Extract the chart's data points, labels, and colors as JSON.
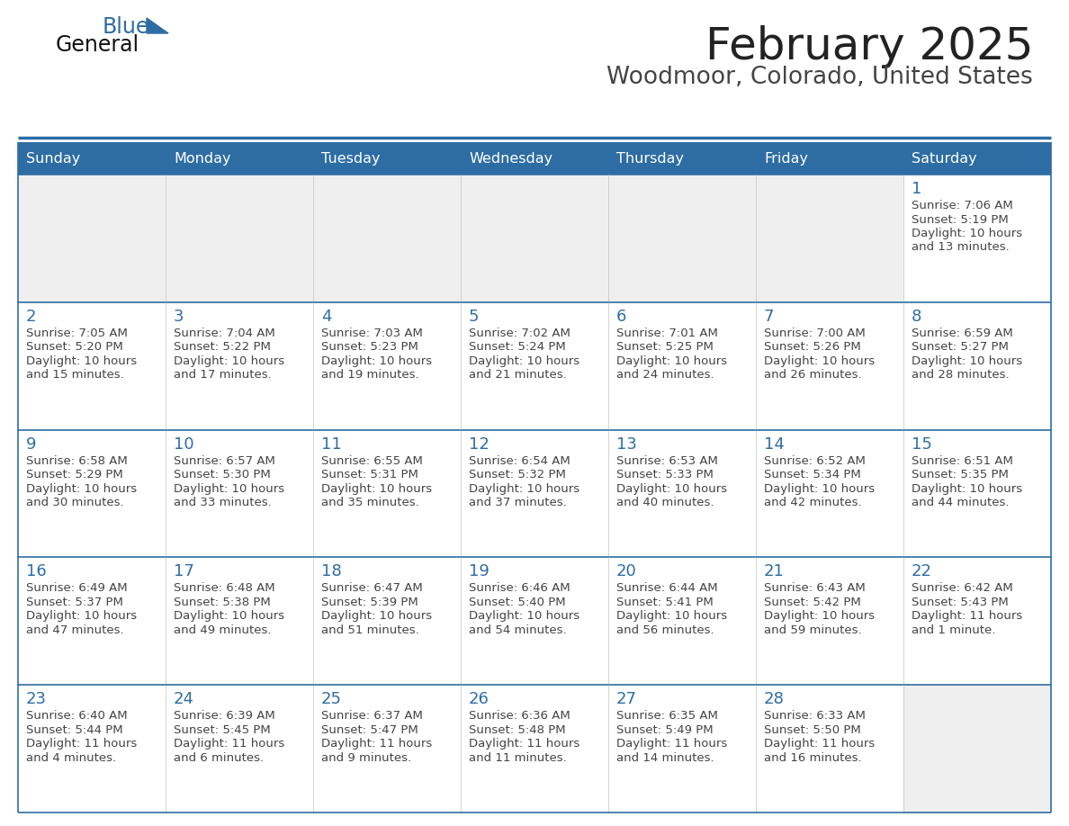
{
  "title": "February 2025",
  "subtitle": "Woodmoor, Colorado, United States",
  "header_color": "#2E6DA4",
  "header_text_color": "#FFFFFF",
  "cell_bg_white": "#FFFFFF",
  "cell_bg_gray": "#EFEFEF",
  "row_separator_color": "#2E6DA4",
  "col_separator_color": "#CCCCCC",
  "day_names": [
    "Sunday",
    "Monday",
    "Tuesday",
    "Wednesday",
    "Thursday",
    "Friday",
    "Saturday"
  ],
  "title_color": "#222222",
  "subtitle_color": "#444444",
  "day_number_color": "#2E6DA4",
  "cell_text_color": "#444444",
  "logo_general_color": "#111111",
  "logo_blue_color": "#2E6DA4",
  "calendar": [
    [
      null,
      null,
      null,
      null,
      null,
      null,
      {
        "day": 1,
        "sunrise": "7:06 AM",
        "sunset": "5:19 PM",
        "daylight_line1": "Daylight: 10 hours",
        "daylight_line2": "and 13 minutes."
      }
    ],
    [
      {
        "day": 2,
        "sunrise": "7:05 AM",
        "sunset": "5:20 PM",
        "daylight_line1": "Daylight: 10 hours",
        "daylight_line2": "and 15 minutes."
      },
      {
        "day": 3,
        "sunrise": "7:04 AM",
        "sunset": "5:22 PM",
        "daylight_line1": "Daylight: 10 hours",
        "daylight_line2": "and 17 minutes."
      },
      {
        "day": 4,
        "sunrise": "7:03 AM",
        "sunset": "5:23 PM",
        "daylight_line1": "Daylight: 10 hours",
        "daylight_line2": "and 19 minutes."
      },
      {
        "day": 5,
        "sunrise": "7:02 AM",
        "sunset": "5:24 PM",
        "daylight_line1": "Daylight: 10 hours",
        "daylight_line2": "and 21 minutes."
      },
      {
        "day": 6,
        "sunrise": "7:01 AM",
        "sunset": "5:25 PM",
        "daylight_line1": "Daylight: 10 hours",
        "daylight_line2": "and 24 minutes."
      },
      {
        "day": 7,
        "sunrise": "7:00 AM",
        "sunset": "5:26 PM",
        "daylight_line1": "Daylight: 10 hours",
        "daylight_line2": "and 26 minutes."
      },
      {
        "day": 8,
        "sunrise": "6:59 AM",
        "sunset": "5:27 PM",
        "daylight_line1": "Daylight: 10 hours",
        "daylight_line2": "and 28 minutes."
      }
    ],
    [
      {
        "day": 9,
        "sunrise": "6:58 AM",
        "sunset": "5:29 PM",
        "daylight_line1": "Daylight: 10 hours",
        "daylight_line2": "and 30 minutes."
      },
      {
        "day": 10,
        "sunrise": "6:57 AM",
        "sunset": "5:30 PM",
        "daylight_line1": "Daylight: 10 hours",
        "daylight_line2": "and 33 minutes."
      },
      {
        "day": 11,
        "sunrise": "6:55 AM",
        "sunset": "5:31 PM",
        "daylight_line1": "Daylight: 10 hours",
        "daylight_line2": "and 35 minutes."
      },
      {
        "day": 12,
        "sunrise": "6:54 AM",
        "sunset": "5:32 PM",
        "daylight_line1": "Daylight: 10 hours",
        "daylight_line2": "and 37 minutes."
      },
      {
        "day": 13,
        "sunrise": "6:53 AM",
        "sunset": "5:33 PM",
        "daylight_line1": "Daylight: 10 hours",
        "daylight_line2": "and 40 minutes."
      },
      {
        "day": 14,
        "sunrise": "6:52 AM",
        "sunset": "5:34 PM",
        "daylight_line1": "Daylight: 10 hours",
        "daylight_line2": "and 42 minutes."
      },
      {
        "day": 15,
        "sunrise": "6:51 AM",
        "sunset": "5:35 PM",
        "daylight_line1": "Daylight: 10 hours",
        "daylight_line2": "and 44 minutes."
      }
    ],
    [
      {
        "day": 16,
        "sunrise": "6:49 AM",
        "sunset": "5:37 PM",
        "daylight_line1": "Daylight: 10 hours",
        "daylight_line2": "and 47 minutes."
      },
      {
        "day": 17,
        "sunrise": "6:48 AM",
        "sunset": "5:38 PM",
        "daylight_line1": "Daylight: 10 hours",
        "daylight_line2": "and 49 minutes."
      },
      {
        "day": 18,
        "sunrise": "6:47 AM",
        "sunset": "5:39 PM",
        "daylight_line1": "Daylight: 10 hours",
        "daylight_line2": "and 51 minutes."
      },
      {
        "day": 19,
        "sunrise": "6:46 AM",
        "sunset": "5:40 PM",
        "daylight_line1": "Daylight: 10 hours",
        "daylight_line2": "and 54 minutes."
      },
      {
        "day": 20,
        "sunrise": "6:44 AM",
        "sunset": "5:41 PM",
        "daylight_line1": "Daylight: 10 hours",
        "daylight_line2": "and 56 minutes."
      },
      {
        "day": 21,
        "sunrise": "6:43 AM",
        "sunset": "5:42 PM",
        "daylight_line1": "Daylight: 10 hours",
        "daylight_line2": "and 59 minutes."
      },
      {
        "day": 22,
        "sunrise": "6:42 AM",
        "sunset": "5:43 PM",
        "daylight_line1": "Daylight: 11 hours",
        "daylight_line2": "and 1 minute."
      }
    ],
    [
      {
        "day": 23,
        "sunrise": "6:40 AM",
        "sunset": "5:44 PM",
        "daylight_line1": "Daylight: 11 hours",
        "daylight_line2": "and 4 minutes."
      },
      {
        "day": 24,
        "sunrise": "6:39 AM",
        "sunset": "5:45 PM",
        "daylight_line1": "Daylight: 11 hours",
        "daylight_line2": "and 6 minutes."
      },
      {
        "day": 25,
        "sunrise": "6:37 AM",
        "sunset": "5:47 PM",
        "daylight_line1": "Daylight: 11 hours",
        "daylight_line2": "and 9 minutes."
      },
      {
        "day": 26,
        "sunrise": "6:36 AM",
        "sunset": "5:48 PM",
        "daylight_line1": "Daylight: 11 hours",
        "daylight_line2": "and 11 minutes."
      },
      {
        "day": 27,
        "sunrise": "6:35 AM",
        "sunset": "5:49 PM",
        "daylight_line1": "Daylight: 11 hours",
        "daylight_line2": "and 14 minutes."
      },
      {
        "day": 28,
        "sunrise": "6:33 AM",
        "sunset": "5:50 PM",
        "daylight_line1": "Daylight: 11 hours",
        "daylight_line2": "and 16 minutes."
      },
      null
    ]
  ]
}
